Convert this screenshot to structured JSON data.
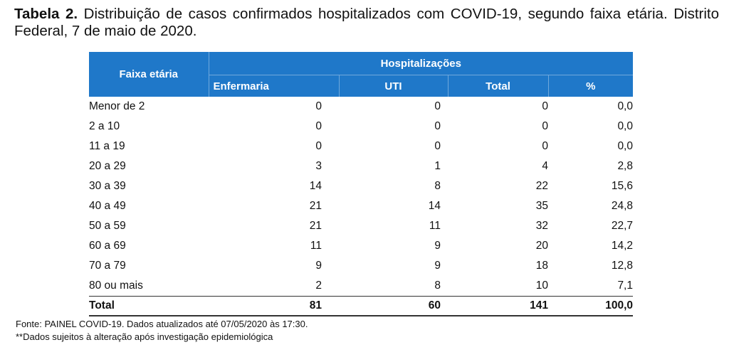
{
  "caption": {
    "label": "Tabela 2.",
    "text": "Distribuição de casos confirmados hospitalizados com COVID-19, segundo faixa etária. Distrito Federal, 7 de maio de 2020."
  },
  "table": {
    "row_header": "Faixa etária",
    "group_header": "Hospitalizações",
    "sub_headers": [
      "Enfermaria",
      "UTI",
      "Total",
      "%"
    ],
    "rows": [
      {
        "label": "Menor de 2",
        "enfermaria": "0",
        "uti": "0",
        "total": "0",
        "pct": "0,0"
      },
      {
        "label": "2 a 10",
        "enfermaria": "0",
        "uti": "0",
        "total": "0",
        "pct": "0,0"
      },
      {
        "label": "11 a 19",
        "enfermaria": "0",
        "uti": "0",
        "total": "0",
        "pct": "0,0"
      },
      {
        "label": "20 a 29",
        "enfermaria": "3",
        "uti": "1",
        "total": "4",
        "pct": "2,8"
      },
      {
        "label": "30 a 39",
        "enfermaria": "14",
        "uti": "8",
        "total": "22",
        "pct": "15,6"
      },
      {
        "label": "40 a 49",
        "enfermaria": "21",
        "uti": "14",
        "total": "35",
        "pct": "24,8"
      },
      {
        "label": "50 a 59",
        "enfermaria": "21",
        "uti": "11",
        "total": "32",
        "pct": "22,7"
      },
      {
        "label": "60 a 69",
        "enfermaria": "11",
        "uti": "9",
        "total": "20",
        "pct": "14,2"
      },
      {
        "label": "70 a 79",
        "enfermaria": "9",
        "uti": "9",
        "total": "18",
        "pct": "12,8"
      },
      {
        "label": "80 ou mais",
        "enfermaria": "2",
        "uti": "8",
        "total": "10",
        "pct": "7,1"
      }
    ],
    "total_row": {
      "label": "Total",
      "enfermaria": "81",
      "uti": "60",
      "total": "141",
      "pct": "100,0"
    }
  },
  "notes": {
    "source": "Fonte: PAINEL COVID-19. Dados atualizados até 07/05/2020 às 17:30.",
    "disclaimer": "**Dados sujeitos à alteração após investigação epidemiológica"
  },
  "colors": {
    "header_background": "#1f78c9",
    "header_text": "#ffffff",
    "body_text": "#111111"
  }
}
